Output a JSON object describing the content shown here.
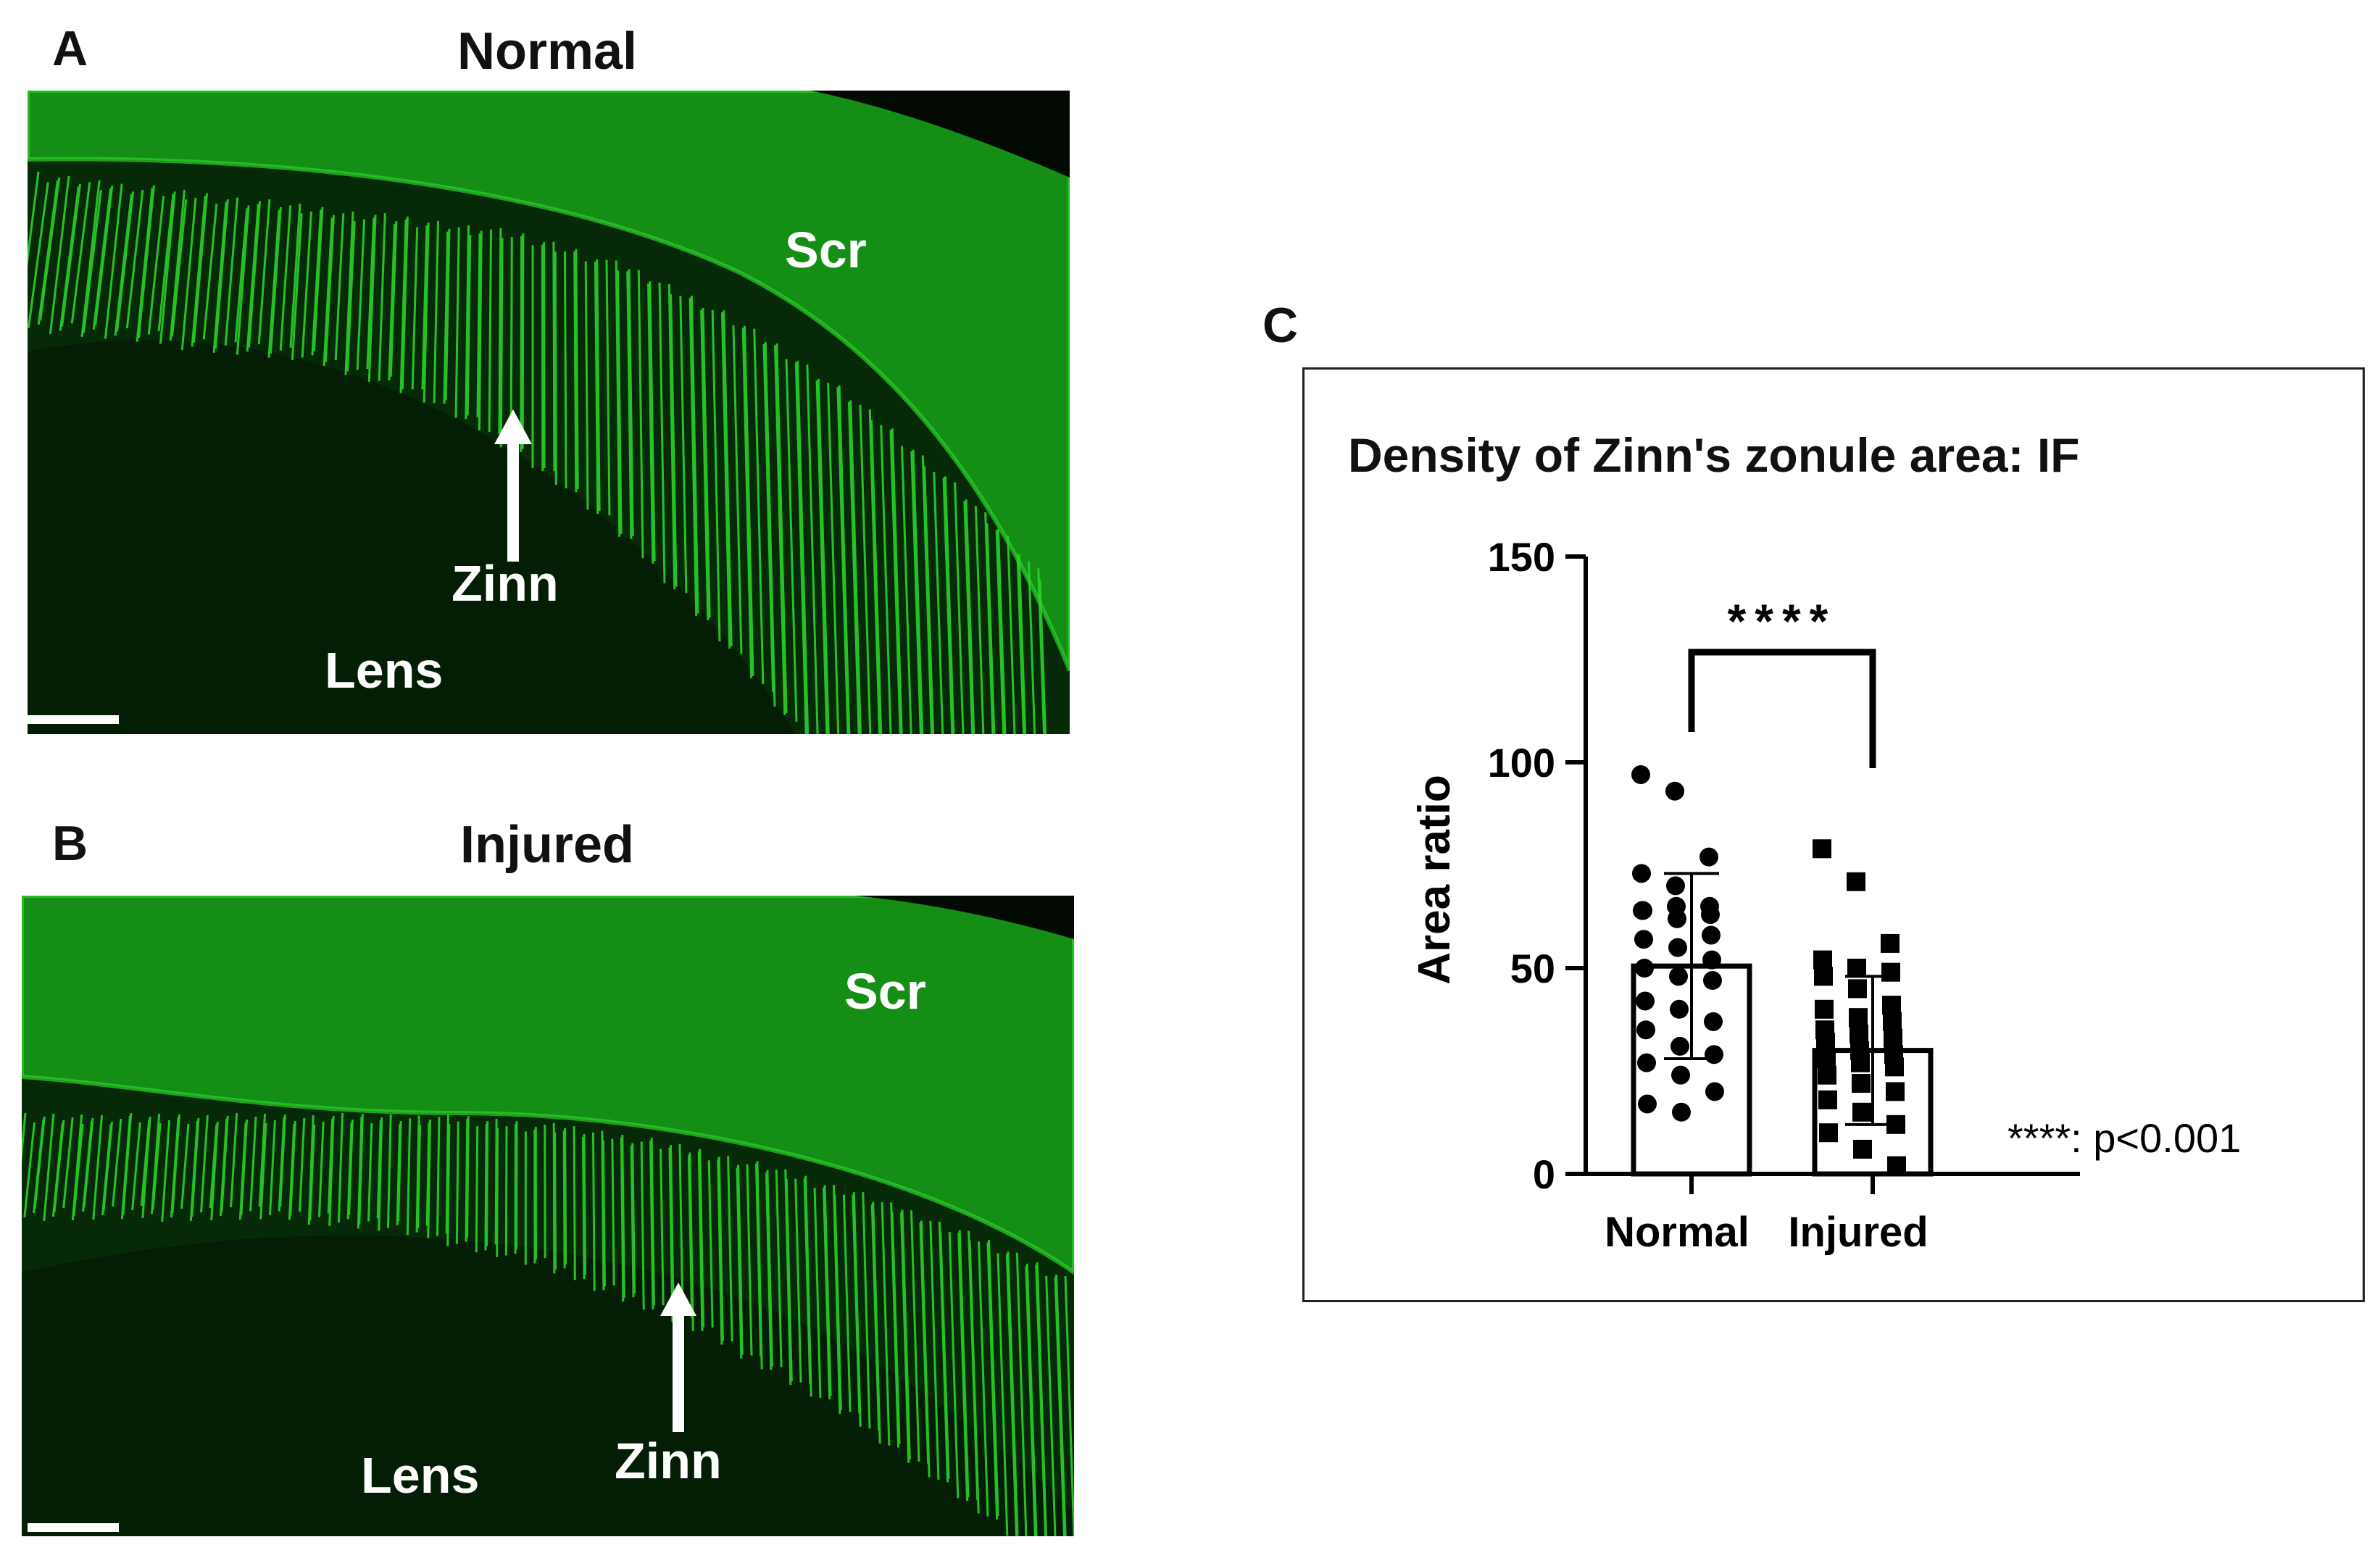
{
  "panel_a": {
    "label": "A",
    "title": "Normal",
    "scr": "Scr",
    "lens": "Lens",
    "zinn": "Zinn"
  },
  "panel_b": {
    "label": "B",
    "title": "Injured",
    "scr": "Scr",
    "lens": "Lens",
    "zinn": "Zinn"
  },
  "panel_c": {
    "label": "C",
    "footnote": "****: p<0.001"
  },
  "colors": {
    "fluor_green": "#2bd12b",
    "background_dark": "#062a08",
    "bar_stroke": "#000000"
  },
  "chart_data": {
    "type": "bar",
    "title": "Density of Zinn's zonule area: IF",
    "ylabel": "Area ratio",
    "xlabel": "",
    "ylim": [
      0,
      150
    ],
    "yticks": [
      0,
      50,
      100,
      150
    ],
    "categories": [
      "Normal",
      "Injured"
    ],
    "values": [
      50.5,
      30
    ],
    "error_sd": [
      22.5,
      18
    ],
    "significance": "****",
    "grid": false,
    "points": [
      [
        97,
        93,
        77,
        73,
        70,
        65,
        64,
        65,
        63,
        64,
        62,
        58,
        57,
        55,
        52,
        50,
        48,
        47,
        42,
        40,
        37,
        35,
        31,
        29,
        27,
        24,
        20,
        17,
        15
      ],
      [
        79,
        71,
        56,
        52,
        50,
        49,
        48,
        45,
        41,
        40,
        38,
        37,
        35,
        34,
        33,
        32,
        30,
        29,
        28,
        27,
        26,
        24,
        22,
        20,
        18,
        15,
        12,
        10,
        6,
        2
      ]
    ]
  }
}
